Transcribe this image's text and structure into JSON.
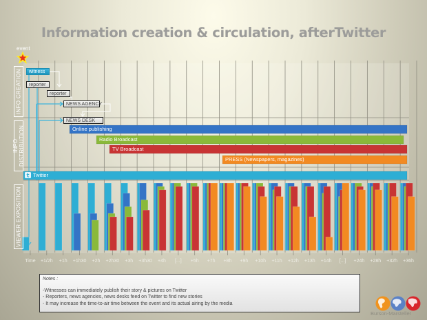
{
  "title": "Information creation & circulation, afterTwitter",
  "event_label": "event",
  "side_labels": {
    "creation": "INFO CREATION",
    "distribution": "INFO DISTRIBUTION",
    "exposition": "VIEWER EXPOSITION"
  },
  "creation_boxes": {
    "witness": "witness",
    "reporter1": "reporter",
    "reporter2": "reporter",
    "agency": "NEWS AGENCY",
    "desk": "NEWS DESK"
  },
  "distribution_bars": {
    "online": "Online publishing",
    "radio": "Radio Broadcast",
    "tv": "TV Broadcast",
    "press": "PRESS (Newspapers, magazines)",
    "twitter": "Twitter"
  },
  "colors": {
    "twitter": "#2eaed4",
    "online": "#3474c6",
    "radio": "#8ab93a",
    "tv": "#c83434",
    "press": "#f28a22"
  },
  "notes": {
    "heading": "Notes :",
    "lines": [
      "-Witnesses can immediately publish their story & pictures on Twitter",
      "- Reporters, news agencies, news desks feed on Twitter to find new stories",
      "- It may increase the time-to-air time between the event and its actual airing by the media"
    ]
  },
  "brand": "Burson-Marsteller",
  "chart_data": {
    "type": "bar",
    "title": "Information creation & circulation, afterTwitter",
    "xlabel": "Time",
    "ylabel": "VIEWER EXPOSITION",
    "categories": [
      "Time",
      "+1/2h",
      "+1h",
      "+1h30",
      "+2h",
      "+2h30",
      "+3h",
      "+3h30",
      "+4h",
      "[...]",
      "+5h",
      "+7h",
      "+8h",
      "+9h",
      "+10h",
      "+11h",
      "+12h",
      "+13h",
      "+14h",
      "[...]",
      "+24h",
      "+28h",
      "+32h",
      "+36h"
    ],
    "ylim": [
      0,
      100
    ],
    "grid": true,
    "series": [
      {
        "name": "Twitter",
        "key": "twitter",
        "start_index": 0,
        "values": [
          20,
          100,
          100,
          100,
          100,
          100,
          100,
          100,
          100,
          100,
          100,
          100,
          100,
          100,
          100,
          100,
          100,
          100,
          100,
          100,
          100,
          100,
          100,
          100
        ]
      },
      {
        "name": "Online publishing",
        "key": "online",
        "start_index": 3,
        "values": [
          null,
          null,
          null,
          55,
          55,
          70,
          85,
          100,
          100,
          100,
          100,
          100,
          100,
          100,
          100,
          100,
          100,
          100,
          100,
          100,
          100,
          100,
          100,
          100
        ]
      },
      {
        "name": "Radio Broadcast",
        "key": "radio",
        "start_index": 4,
        "values": [
          null,
          null,
          null,
          null,
          45,
          55,
          65,
          75,
          95,
          100,
          100,
          100,
          100,
          100,
          100,
          90,
          95,
          95,
          85,
          80,
          100,
          95,
          100,
          95
        ]
      },
      {
        "name": "TV Broadcast",
        "key": "tv",
        "start_index": 5,
        "values": [
          null,
          null,
          null,
          null,
          null,
          50,
          50,
          60,
          90,
          95,
          95,
          100,
          100,
          100,
          95,
          95,
          95,
          95,
          95,
          90,
          95,
          100,
          100,
          100
        ]
      },
      {
        "name": "PRESS (Newspapers, magazines)",
        "key": "press",
        "start_index": 11,
        "values": [
          null,
          null,
          null,
          null,
          null,
          null,
          null,
          null,
          null,
          null,
          null,
          100,
          100,
          95,
          80,
          80,
          65,
          50,
          20,
          100,
          90,
          90,
          80,
          80
        ]
      }
    ],
    "legend": "inline-bars"
  }
}
